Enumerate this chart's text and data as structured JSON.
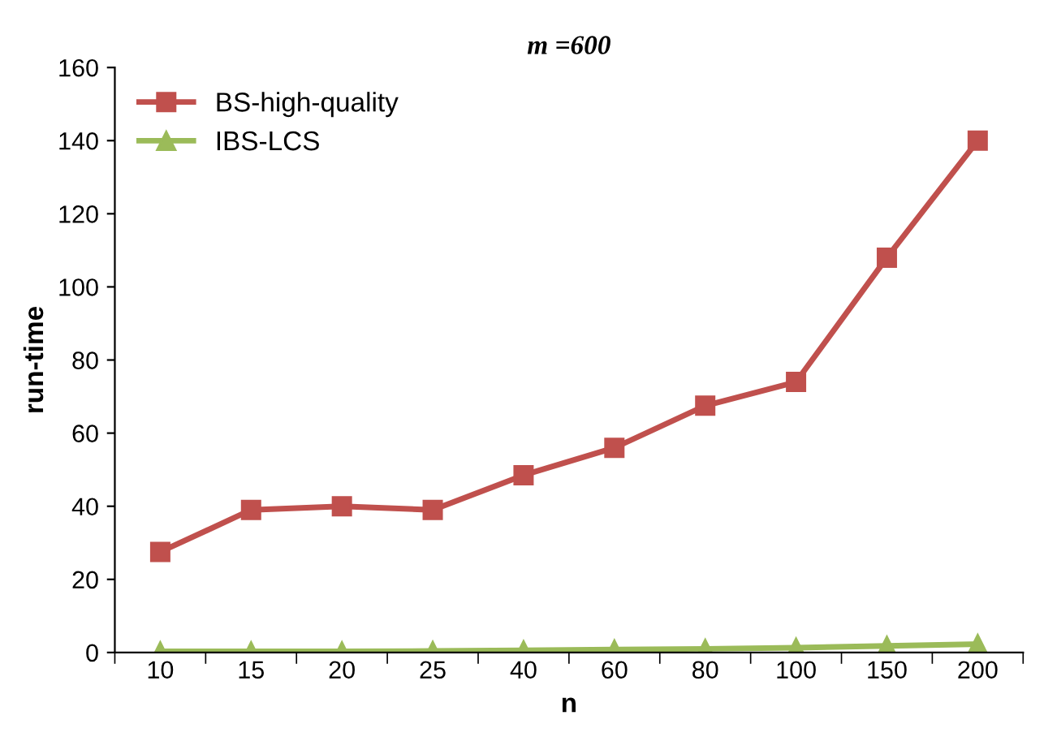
{
  "chart_data": {
    "type": "line",
    "title": "m =600",
    "xlabel": "n",
    "ylabel": "run-time",
    "categories": [
      "10",
      "15",
      "20",
      "25",
      "40",
      "60",
      "80",
      "100",
      "150",
      "200"
    ],
    "series": [
      {
        "name": "BS-high-quality",
        "color": "#c0504d",
        "marker": "square",
        "values": [
          27.5,
          39,
          40,
          39,
          48.5,
          56,
          67.5,
          74,
          108,
          140
        ]
      },
      {
        "name": "IBS-LCS",
        "color": "#9bbb59",
        "marker": "triangle",
        "values": [
          0.3,
          0.3,
          0.3,
          0.4,
          0.6,
          0.8,
          1,
          1.3,
          1.8,
          2.3
        ]
      }
    ],
    "ylim": [
      0,
      160
    ],
    "yticks": [
      0,
      20,
      40,
      60,
      80,
      100,
      120,
      140,
      160
    ],
    "grid": false,
    "legend": "top left"
  }
}
